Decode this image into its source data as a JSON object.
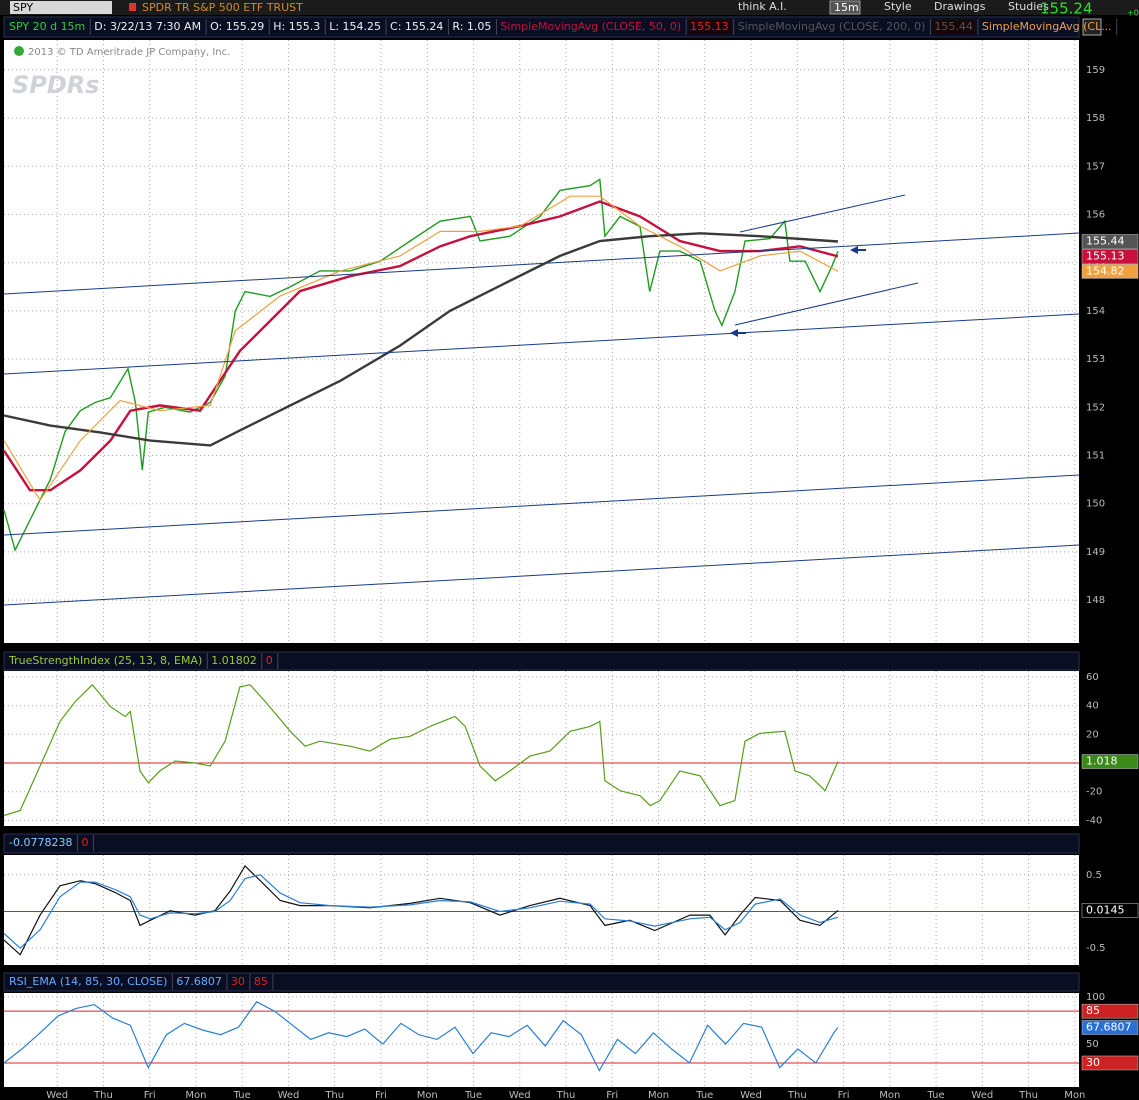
{
  "toolbar": {
    "symbol": "SPY",
    "description": "SPDR TR S&P 500 ETF TRUST",
    "buttons": [
      "think A.I.",
      "15m",
      "Style",
      "Drawings",
      "Studies"
    ],
    "last": "155.24",
    "change": "+0"
  },
  "watermark": {
    "copyright": "2013 © TD Ameritrade JP Company, Inc.",
    "logo": "SPDRs"
  },
  "chart_data": [
    {
      "type": "line",
      "title": "SPY 20 d 15m",
      "quote": [
        "D: 3/22/13 7:30 AM",
        "O: 155.29",
        "H: 155.3",
        "L: 154.25",
        "C: 155.24",
        "R: 1.05"
      ],
      "color": "#1e9e1e",
      "x": [
        -1.15,
        -0.91,
        -0.48,
        -0.15,
        0.17,
        0.5,
        0.82,
        1.15,
        1.53,
        1.69,
        1.84,
        1.97,
        2.33,
        2.87,
        3.31,
        3.63,
        3.85,
        4.06,
        4.6,
        5.04,
        5.68,
        6.33,
        6.98,
        7.63,
        8.28,
        8.93,
        9.14,
        9.79,
        10.44,
        10.87,
        11.52,
        11.73,
        11.84,
        12.17,
        12.6,
        12.81,
        13.03,
        13.46,
        13.9,
        14.22,
        14.37,
        14.65,
        14.87,
        15.41,
        15.73,
        15.84,
        16.17,
        16.49,
        16.75,
        16.88
      ],
      "values": [
        149.87,
        149.04,
        149.87,
        150.5,
        151.5,
        151.93,
        152.1,
        152.2,
        152.8,
        152.1,
        150.7,
        151.9,
        152,
        151.9,
        152.1,
        152.65,
        154,
        154.4,
        154.3,
        154.5,
        154.83,
        154.83,
        155.03,
        155.45,
        155.86,
        155.96,
        155.45,
        155.55,
        155.96,
        156.5,
        156.6,
        156.73,
        155.55,
        155.96,
        155.75,
        154.4,
        155.24,
        155.24,
        155.03,
        154,
        153.7,
        154.4,
        155.45,
        155.5,
        155.86,
        155.03,
        155.03,
        154.4,
        154.93,
        155.24
      ],
      "series": [
        {
          "name": "SimpleMovingAvg (CLOSE, 50, 0)",
          "color": "#c8103c",
          "x": [
            -1.15,
            -0.59,
            -0.15,
            0.5,
            1.15,
            1.58,
            2.22,
            3.09,
            3.95,
            4.6,
            5.25,
            6.33,
            7.41,
            8.28,
            8.93,
            10.01,
            10.87,
            11.73,
            12.6,
            13.46,
            14.33,
            15.19,
            16.06,
            16.88
          ],
          "values": [
            151.1,
            150.28,
            150.28,
            150.69,
            151.31,
            151.93,
            152.04,
            151.93,
            153.17,
            153.79,
            154.41,
            154.72,
            154.93,
            155.34,
            155.55,
            155.76,
            155.96,
            156.27,
            155.96,
            155.45,
            155.24,
            155.24,
            155.34,
            155.13
          ]
        },
        {
          "name": "SimpleMovingAvg (CLOSE, 200, 0)",
          "color": "#3a3a3a",
          "x": [
            -1.15,
            -0.15,
            0.93,
            2.01,
            3.31,
            3.95,
            5.04,
            6.12,
            7.41,
            8.49,
            9.57,
            10.87,
            11.73,
            12.81,
            13.9,
            15.19,
            16.88
          ],
          "values": [
            151.83,
            151.62,
            151.48,
            151.31,
            151.21,
            151.52,
            152.04,
            152.55,
            153.28,
            154,
            154.52,
            155.14,
            155.45,
            155.55,
            155.61,
            155.55,
            155.44
          ]
        },
        {
          "name": "SimpleMovingAvg (CL...",
          "color": "#f0a040",
          "x": [
            -1.15,
            -0.37,
            0.5,
            1.36,
            2.22,
            3.31,
            3.85,
            4.82,
            6.12,
            7.41,
            8.28,
            9.14,
            10.01,
            11.09,
            11.73,
            12.6,
            13.46,
            14.33,
            15.19,
            16.06,
            16.88
          ],
          "values": [
            151.31,
            150.07,
            151.31,
            152.14,
            151.93,
            152.04,
            153.59,
            154.31,
            154.83,
            155.14,
            155.65,
            155.65,
            155.76,
            156.38,
            156.38,
            155.76,
            155.34,
            154.83,
            155.14,
            155.24,
            154.82
          ]
        }
      ],
      "ylim": [
        147.11,
        159.62
      ],
      "yticks": [
        148,
        149,
        150,
        151,
        152,
        153,
        154,
        155,
        156,
        157,
        158,
        159
      ],
      "grid": true
    },
    {
      "type": "line",
      "title": "TrueStrengthIndex (25, 13, 8, EMA)",
      "series": [
        {
          "color": "#5a9e1a",
          "x": [
            -1.15,
            -0.8,
            -0.37,
            0.06,
            0.39,
            0.76,
            1.15,
            1.47,
            1.58,
            1.79,
            1.97,
            2.22,
            2.55,
            2.98,
            3.31,
            3.63,
            3.95,
            4.17,
            4.5,
            5.04,
            5.36,
            5.68,
            6.33,
            6.76,
            7.2,
            7.63,
            8.06,
            8.6,
            8.82,
            9.14,
            9.47,
            9.79,
            10.22,
            10.65,
            11.09,
            11.52,
            11.73,
            11.84,
            12.17,
            12.6,
            12.82,
            13.03,
            13.46,
            13.9,
            14.33,
            14.65,
            14.87,
            15.19,
            15.73,
            15.95,
            16.27,
            16.6,
            16.88
          ],
          "values": [
            -36.6,
            -33.1,
            -2.1,
            29,
            42.8,
            54.5,
            39.3,
            32.4,
            35.9,
            -5.5,
            -13.8,
            -5.5,
            1.4,
            0,
            -2.1,
            15.2,
            53.1,
            54.5,
            42.8,
            22.1,
            11.7,
            15.2,
            11.7,
            8.3,
            16.6,
            18.6,
            25.5,
            32.4,
            25.5,
            -2.1,
            -12.4,
            -5.5,
            4.8,
            8.3,
            22.1,
            25.5,
            29,
            -12.4,
            -19.3,
            -22.8,
            -29.7,
            -26.2,
            -5.5,
            -9,
            -29.7,
            -26.2,
            15.2,
            20.7,
            22.1,
            -5.5,
            -9,
            -19.3,
            1.01802
          ],
          "value_labels": [
            null,
            null,
            null,
            null,
            null,
            null,
            null,
            null,
            null,
            null,
            null,
            null,
            null,
            null,
            null,
            null,
            null,
            null,
            null,
            null,
            null,
            null,
            null,
            null,
            null,
            null,
            null,
            null,
            null,
            null,
            null,
            null,
            null,
            null,
            null,
            null,
            null,
            null,
            null,
            null,
            null,
            null,
            null,
            null,
            null,
            null,
            null,
            null,
            null,
            null,
            null,
            null,
            "1.018"
          ]
        }
      ],
      "reference_lines": [
        0
      ],
      "ylim": [
        -43.9,
        64.1
      ],
      "yticks": [
        -40,
        -20,
        20,
        40,
        60
      ],
      "grid": true
    },
    {
      "type": "line",
      "series": [
        {
          "color": "#111111",
          "x": [
            -1.15,
            -0.8,
            -0.37,
            0.06,
            0.5,
            0.82,
            1.25,
            1.58,
            1.79,
            2.01,
            2.44,
            2.98,
            3.41,
            3.74,
            4.06,
            4.39,
            4.82,
            5.25,
            5.9,
            6.76,
            7.63,
            8.28,
            8.93,
            9.57,
            10.22,
            10.87,
            11.52,
            11.84,
            12.38,
            12.92,
            13.68,
            14.11,
            14.44,
            14.76,
            15.09,
            15.63,
            16.06,
            16.49,
            16.88
          ],
          "values": [
            -0.39,
            -0.59,
            -0.05,
            0.35,
            0.42,
            0.38,
            0.26,
            0.15,
            -0.19,
            -0.12,
            0.01,
            -0.05,
            0.01,
            0.28,
            0.62,
            0.42,
            0.15,
            0.08,
            0.08,
            0.05,
            0.11,
            0.18,
            0.12,
            -0.05,
            0.08,
            0.18,
            0.08,
            -0.19,
            -0.12,
            -0.26,
            -0.05,
            -0.05,
            -0.32,
            -0.05,
            0.19,
            0.15,
            -0.12,
            -0.19,
            0.0145
          ]
        },
        {
          "color": "#2a7fd4",
          "x": [
            -1.15,
            -0.8,
            -0.37,
            0.06,
            0.5,
            0.82,
            1.25,
            1.58,
            1.79,
            2.01,
            2.44,
            2.98,
            3.41,
            3.74,
            4.06,
            4.39,
            4.82,
            5.25,
            5.9,
            6.76,
            7.63,
            8.28,
            8.93,
            9.57,
            10.22,
            10.87,
            11.52,
            11.84,
            12.38,
            12.92,
            13.68,
            14.11,
            14.44,
            14.76,
            15.09,
            15.63,
            16.06,
            16.49,
            16.88
          ],
          "values": [
            -0.3,
            -0.5,
            -0.25,
            0.2,
            0.4,
            0.4,
            0.3,
            0.2,
            -0.05,
            -0.1,
            -0.02,
            -0.03,
            0,
            0.15,
            0.45,
            0.5,
            0.25,
            0.12,
            0.08,
            0.06,
            0.09,
            0.15,
            0.13,
            0,
            0.05,
            0.14,
            0.1,
            -0.1,
            -0.13,
            -0.2,
            -0.1,
            -0.08,
            -0.25,
            -0.15,
            0.1,
            0.17,
            -0.05,
            -0.15,
            -0.0778238
          ]
        }
      ],
      "reference_lines": [
        0
      ],
      "ylim": [
        -0.73,
        0.77
      ],
      "yticks": [
        -0.5,
        0.5
      ],
      "grid": true
    },
    {
      "type": "line",
      "title": "RSI_EMA (14, 85, 30, CLOSE)",
      "series": [
        {
          "color": "#2a7fd4",
          "x": [
            -1.15,
            -0.76,
            -0.37,
            0.02,
            0.41,
            0.8,
            1.19,
            1.58,
            1.97,
            2.36,
            2.75,
            3.14,
            3.53,
            3.92,
            4.31,
            4.7,
            5.09,
            5.48,
            5.87,
            6.26,
            6.65,
            7.04,
            7.43,
            7.82,
            8.21,
            8.6,
            8.99,
            9.38,
            9.77,
            10.16,
            10.55,
            10.94,
            11.33,
            11.72,
            12.11,
            12.5,
            12.89,
            13.28,
            13.67,
            14.06,
            14.45,
            14.84,
            15.23,
            15.62,
            16.01,
            16.4,
            16.79,
            16.88
          ],
          "values": [
            30,
            45,
            62,
            80,
            88,
            92,
            78,
            70,
            25,
            60,
            72,
            65,
            60,
            68,
            95,
            85,
            70,
            55,
            62,
            58,
            66,
            50,
            72,
            60,
            55,
            68,
            40,
            62,
            58,
            70,
            48,
            75,
            60,
            22,
            55,
            40,
            62,
            45,
            30,
            70,
            50,
            72,
            68,
            25,
            45,
            30,
            62,
            67.6807
          ]
        }
      ],
      "reference_lines": [
        30,
        85
      ],
      "ylim": [
        4.5,
        104.3
      ],
      "yticks": [
        50,
        100
      ],
      "grid": true,
      "xlim": [
        -1.15,
        22.09
      ],
      "xticks": [
        {
          "value": 0,
          "label": "Wed"
        },
        {
          "value": 1,
          "label": "Thu"
        },
        {
          "value": 2,
          "label": "Fri"
        },
        {
          "value": 3,
          "label": "Mon"
        },
        {
          "value": 4,
          "label": "Tue"
        },
        {
          "value": 5,
          "label": "Wed"
        },
        {
          "value": 6,
          "label": "Thu"
        },
        {
          "value": 7,
          "label": "Fri"
        },
        {
          "value": 8,
          "label": "Mon"
        },
        {
          "value": 9,
          "label": "Tue"
        },
        {
          "value": 10,
          "label": "Wed"
        },
        {
          "value": 11,
          "label": "Thu"
        },
        {
          "value": 12,
          "label": "Fri"
        },
        {
          "value": 13,
          "label": "Mon"
        },
        {
          "value": 14,
          "label": "Tue"
        },
        {
          "value": 15,
          "label": "Wed"
        },
        {
          "value": 16,
          "label": "Thu"
        },
        {
          "value": 17,
          "label": "Fri"
        },
        {
          "value": 18,
          "label": "Mon"
        },
        {
          "value": 19,
          "label": "Tue"
        },
        {
          "value": 20,
          "label": "Wed"
        },
        {
          "value": 21,
          "label": "Thu"
        },
        {
          "value": 22,
          "label": "Mon"
        }
      ]
    }
  ]
}
